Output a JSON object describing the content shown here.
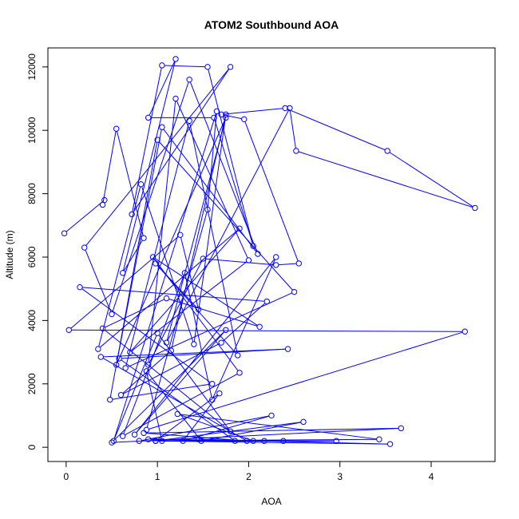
{
  "chart_data": {
    "type": "line",
    "title": "ATOM2 Southbound AOA",
    "xlabel": "AOA",
    "ylabel": "Altitude (m)",
    "xlim": [
      -0.2,
      4.7
    ],
    "ylim": [
      -450,
      12600
    ],
    "x_ticks": [
      0,
      1,
      2,
      3,
      4
    ],
    "y_ticks": [
      0,
      2000,
      4000,
      6000,
      8000,
      10000,
      12000
    ],
    "grid": false,
    "legend": "none",
    "series": [
      {
        "marker": "open-circle",
        "color": "#0000ff",
        "x": [
          -0.02,
          0.42,
          0.4,
          0.55,
          0.85,
          0.62,
          1.2,
          0.9,
          1.62,
          2.05,
          1.55,
          1.05,
          0.72,
          1.8,
          0.2,
          0.5,
          1.35,
          2.1,
          1.05,
          0.55,
          1.75,
          1.1,
          2.45,
          2.52,
          4.48,
          3.52,
          2.4,
          1.7,
          1.95,
          2.55,
          2.3,
          1.5,
          0.9,
          1.2,
          2.0,
          0.7,
          1.9,
          0.35,
          0.82,
          1.4,
          1.75,
          1.15,
          0.6,
          1.7,
          2.2,
          0.15,
          1.6,
          0.48,
          1.0,
          2.5,
          0.65,
          1.35,
          1.88,
          0.98,
          1.45,
          1.25,
          0.03,
          4.37,
          0.88,
          1.55,
          1.65,
          0.52,
          1.0,
          1.8,
          0.4,
          1.1,
          2.12,
          0.95,
          1.9,
          0.62,
          1.3,
          1.6,
          2.3,
          0.75,
          1.75,
          0.5,
          3.67,
          0.85,
          1.98,
          0.38,
          2.43,
          0.58,
          1.85,
          2.96,
          1.05,
          0.88,
          1.48,
          2.6,
          0.98,
          1.68,
          1.28,
          2.25,
          0.8,
          3.43,
          1.22,
          2.05,
          1.45,
          3.55,
          0.98,
          2.17,
          0.9,
          2.38
        ],
        "y": [
          6750,
          7800,
          7650,
          10050,
          6600,
          5500,
          12250,
          10400,
          10400,
          6350,
          12000,
          12050,
          7350,
          12000,
          6300,
          4200,
          11600,
          6100,
          10100,
          2600,
          10400,
          3300,
          10700,
          9350,
          7550,
          9350,
          10700,
          10500,
          10350,
          5800,
          5750,
          5950,
          2600,
          11000,
          5900,
          3000,
          6900,
          3100,
          8300,
          3250,
          10500,
          3050,
          1650,
          3300,
          4600,
          5050,
          2000,
          1500,
          9700,
          4900,
          2500,
          10300,
          2900,
          5800,
          4350,
          6700,
          3700,
          3650,
          550,
          7500,
          10600,
          200,
          3600,
          500,
          3750,
          4700,
          3800,
          6000,
          2350,
          350,
          5500,
          1500,
          6000,
          400,
          3700,
          150,
          600,
          450,
          200,
          2850,
          3100,
          2800,
          200,
          200,
          200,
          2400,
          200,
          800,
          200,
          1700,
          200,
          1000,
          200,
          250,
          1050,
          200,
          250,
          100,
          200,
          200,
          250,
          200
        ]
      }
    ]
  }
}
